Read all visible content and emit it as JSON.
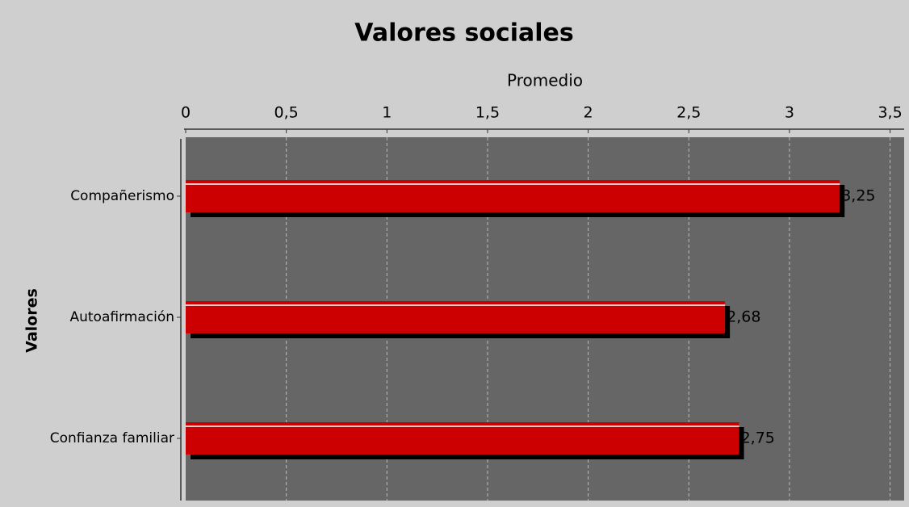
{
  "chart_data": {
    "type": "bar",
    "orientation": "horizontal",
    "title": "Valores sociales",
    "xlabel": "Promedio",
    "ylabel": "Valores",
    "categories": [
      "Compañerismo",
      "Autoafirmación",
      "Confianza familiar"
    ],
    "values": [
      3.25,
      2.68,
      2.75
    ],
    "value_labels": [
      "3,25",
      "2,68",
      "2,75"
    ],
    "color": "#cc0000",
    "xlim": [
      0,
      3.57
    ],
    "xticks": [
      0,
      {
        "value": 0.5,
        "label": "0,5"
      },
      1,
      {
        "value": 1.5,
        "label": "1,5"
      },
      2,
      {
        "value": 2.5,
        "label": "2,5"
      },
      3,
      {
        "value": 3.5,
        "label": "3,5"
      }
    ],
    "grid": true
  }
}
